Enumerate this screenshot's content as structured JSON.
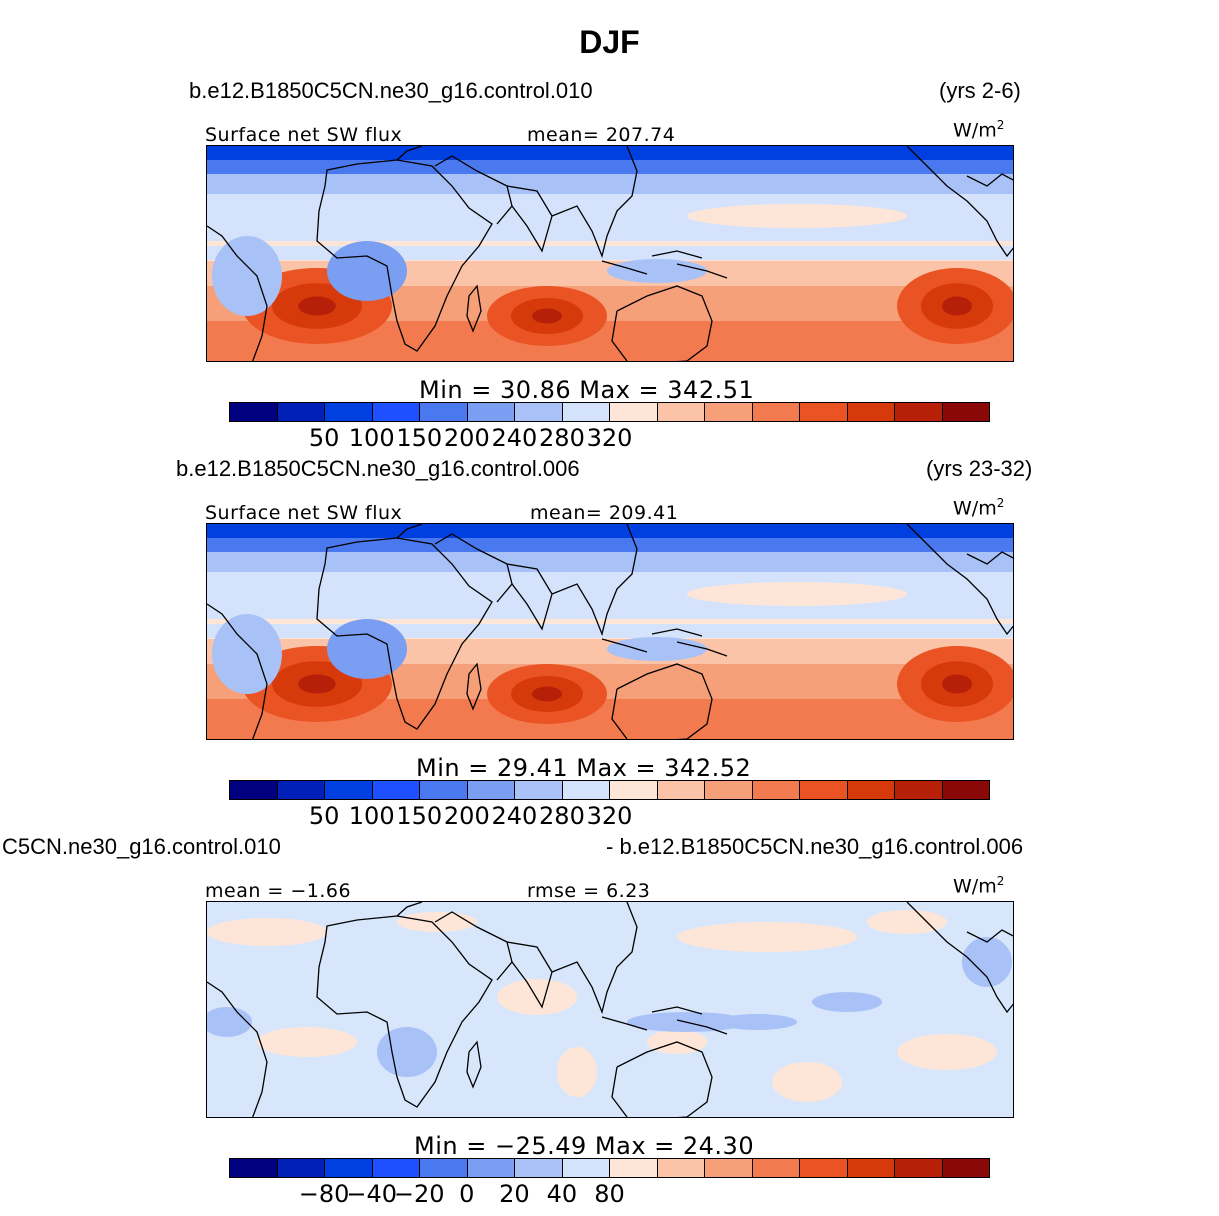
{
  "title": "DJF",
  "panels": [
    {
      "case": "b.e12.B1850C5CN.ne30_g16.control.010",
      "years": "(yrs 2-6)",
      "left_label": "Surface net SW flux",
      "center_label": "mean= 207.74",
      "units": "W/m",
      "units_sup": "2",
      "minmax": "Min = 30.86 Max = 342.51"
    },
    {
      "case": "b.e12.B1850C5CN.ne30_g16.control.006",
      "years": "(yrs 23-32)",
      "left_label": "Surface net SW flux",
      "center_label": "mean= 209.41",
      "units": "W/m",
      "units_sup": "2",
      "minmax": "Min = 29.41 Max = 342.52"
    },
    {
      "case": "C5CN.ne30_g16.control.010",
      "years": "- b.e12.B1850C5CN.ne30_g16.control.006",
      "left_label": "mean = −1.66",
      "center_label": "rmse = 6.23",
      "units": "W/m",
      "units_sup": "2",
      "minmax": "Min = −25.49 Max = 24.30"
    }
  ],
  "colorbar": {
    "colors": [
      "#000080",
      "#0020b8",
      "#0040e0",
      "#1e50ff",
      "#4a78ee",
      "#7a9ef2",
      "#a8c2f8",
      "#d4e3fb",
      "#fde6d8",
      "#fbc4a8",
      "#f6a07a",
      "#f27a4e",
      "#ea5424",
      "#d63a0a",
      "#b62008",
      "#8a0808"
    ],
    "abs_ticks": [
      "50",
      "100",
      "150",
      "200",
      "240",
      "280",
      "320"
    ],
    "diff_ticks": [
      "−80",
      "−40",
      "−20",
      "0",
      "20",
      "40",
      "80"
    ]
  },
  "map_palette": {
    "abs_background": "#d4e3fb",
    "diff_background": "#d8e6fb",
    "coastline": "#000000"
  }
}
